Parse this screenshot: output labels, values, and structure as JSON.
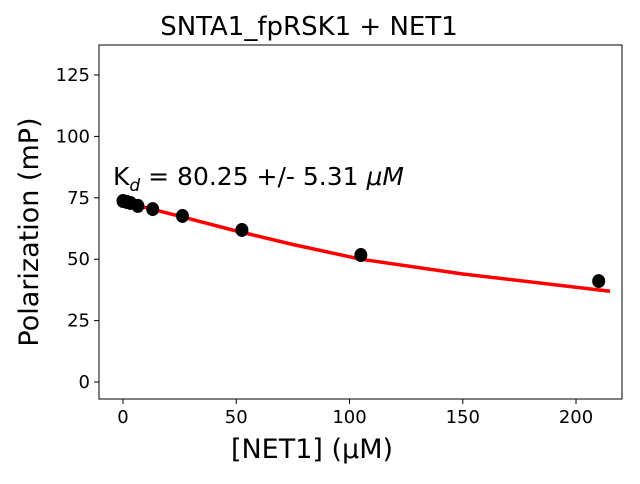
{
  "chart_data": {
    "type": "scatter",
    "title": "SNTA1_fpRSK1 + NET1",
    "xlabel": "[NET1] (μM)",
    "ylabel": "Polarization (mP)",
    "xlim": [
      -10.6,
      220.3
    ],
    "ylim": [
      -6.9,
      137.2
    ],
    "xticks": [
      0,
      50,
      100,
      150,
      200
    ],
    "yticks": [
      0,
      25,
      50,
      75,
      100,
      125
    ],
    "grid": false,
    "annotation": {
      "prefix": "K",
      "subscript": "d",
      "text": " = 80.25 +/- 5.31 ",
      "unit": "μM"
    },
    "series": [
      {
        "name": "data",
        "color": "#000000",
        "marker": "circle",
        "x": [
          0,
          1.64,
          3.28,
          6.56,
          13.1,
          26.25,
          52.5,
          105,
          210
        ],
        "y": [
          73.7,
          73.3,
          72.9,
          71.7,
          70.4,
          67.6,
          61.9,
          51.7,
          41.1
        ]
      },
      {
        "name": "fit",
        "color": "#ff0000",
        "line": true,
        "x": [
          0,
          10,
          25,
          50,
          75,
          105,
          150,
          215
        ],
        "y": [
          73,
          71,
          67.5,
          61.5,
          56,
          50,
          44,
          37
        ]
      }
    ]
  }
}
